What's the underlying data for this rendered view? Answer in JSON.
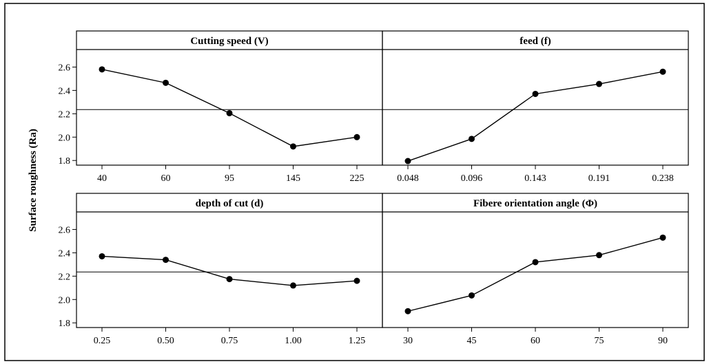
{
  "ylabel": "Surface roughness (Ra)",
  "reference_line": 2.236,
  "y_ticks": [
    "1.8",
    "2.0",
    "2.2",
    "2.4",
    "2.6"
  ],
  "chart_data": [
    {
      "type": "line",
      "title": "Cutting speed (V)",
      "categories": [
        "40",
        "60",
        "95",
        "145",
        "225"
      ],
      "values": [
        2.58,
        2.465,
        2.205,
        1.92,
        2.0
      ],
      "ylim": [
        1.76,
        2.75
      ]
    },
    {
      "type": "line",
      "title": "feed (f)",
      "categories": [
        "0.048",
        "0.096",
        "0.143",
        "0.191",
        "0.238"
      ],
      "values": [
        1.795,
        1.985,
        2.37,
        2.455,
        2.56
      ],
      "ylim": [
        1.76,
        2.75
      ]
    },
    {
      "type": "line",
      "title": "depth of cut (d)",
      "categories": [
        "0.25",
        "0.50",
        "0.75",
        "1.00",
        "1.25"
      ],
      "values": [
        2.37,
        2.34,
        2.175,
        2.12,
        2.16
      ],
      "ylim": [
        1.76,
        2.75
      ]
    },
    {
      "type": "line",
      "title": "Fibere orientation angle (Φ)",
      "categories": [
        "30",
        "45",
        "60",
        "75",
        "90"
      ],
      "values": [
        1.9,
        2.035,
        2.32,
        2.38,
        2.53
      ],
      "ylim": [
        1.76,
        2.75
      ]
    }
  ]
}
